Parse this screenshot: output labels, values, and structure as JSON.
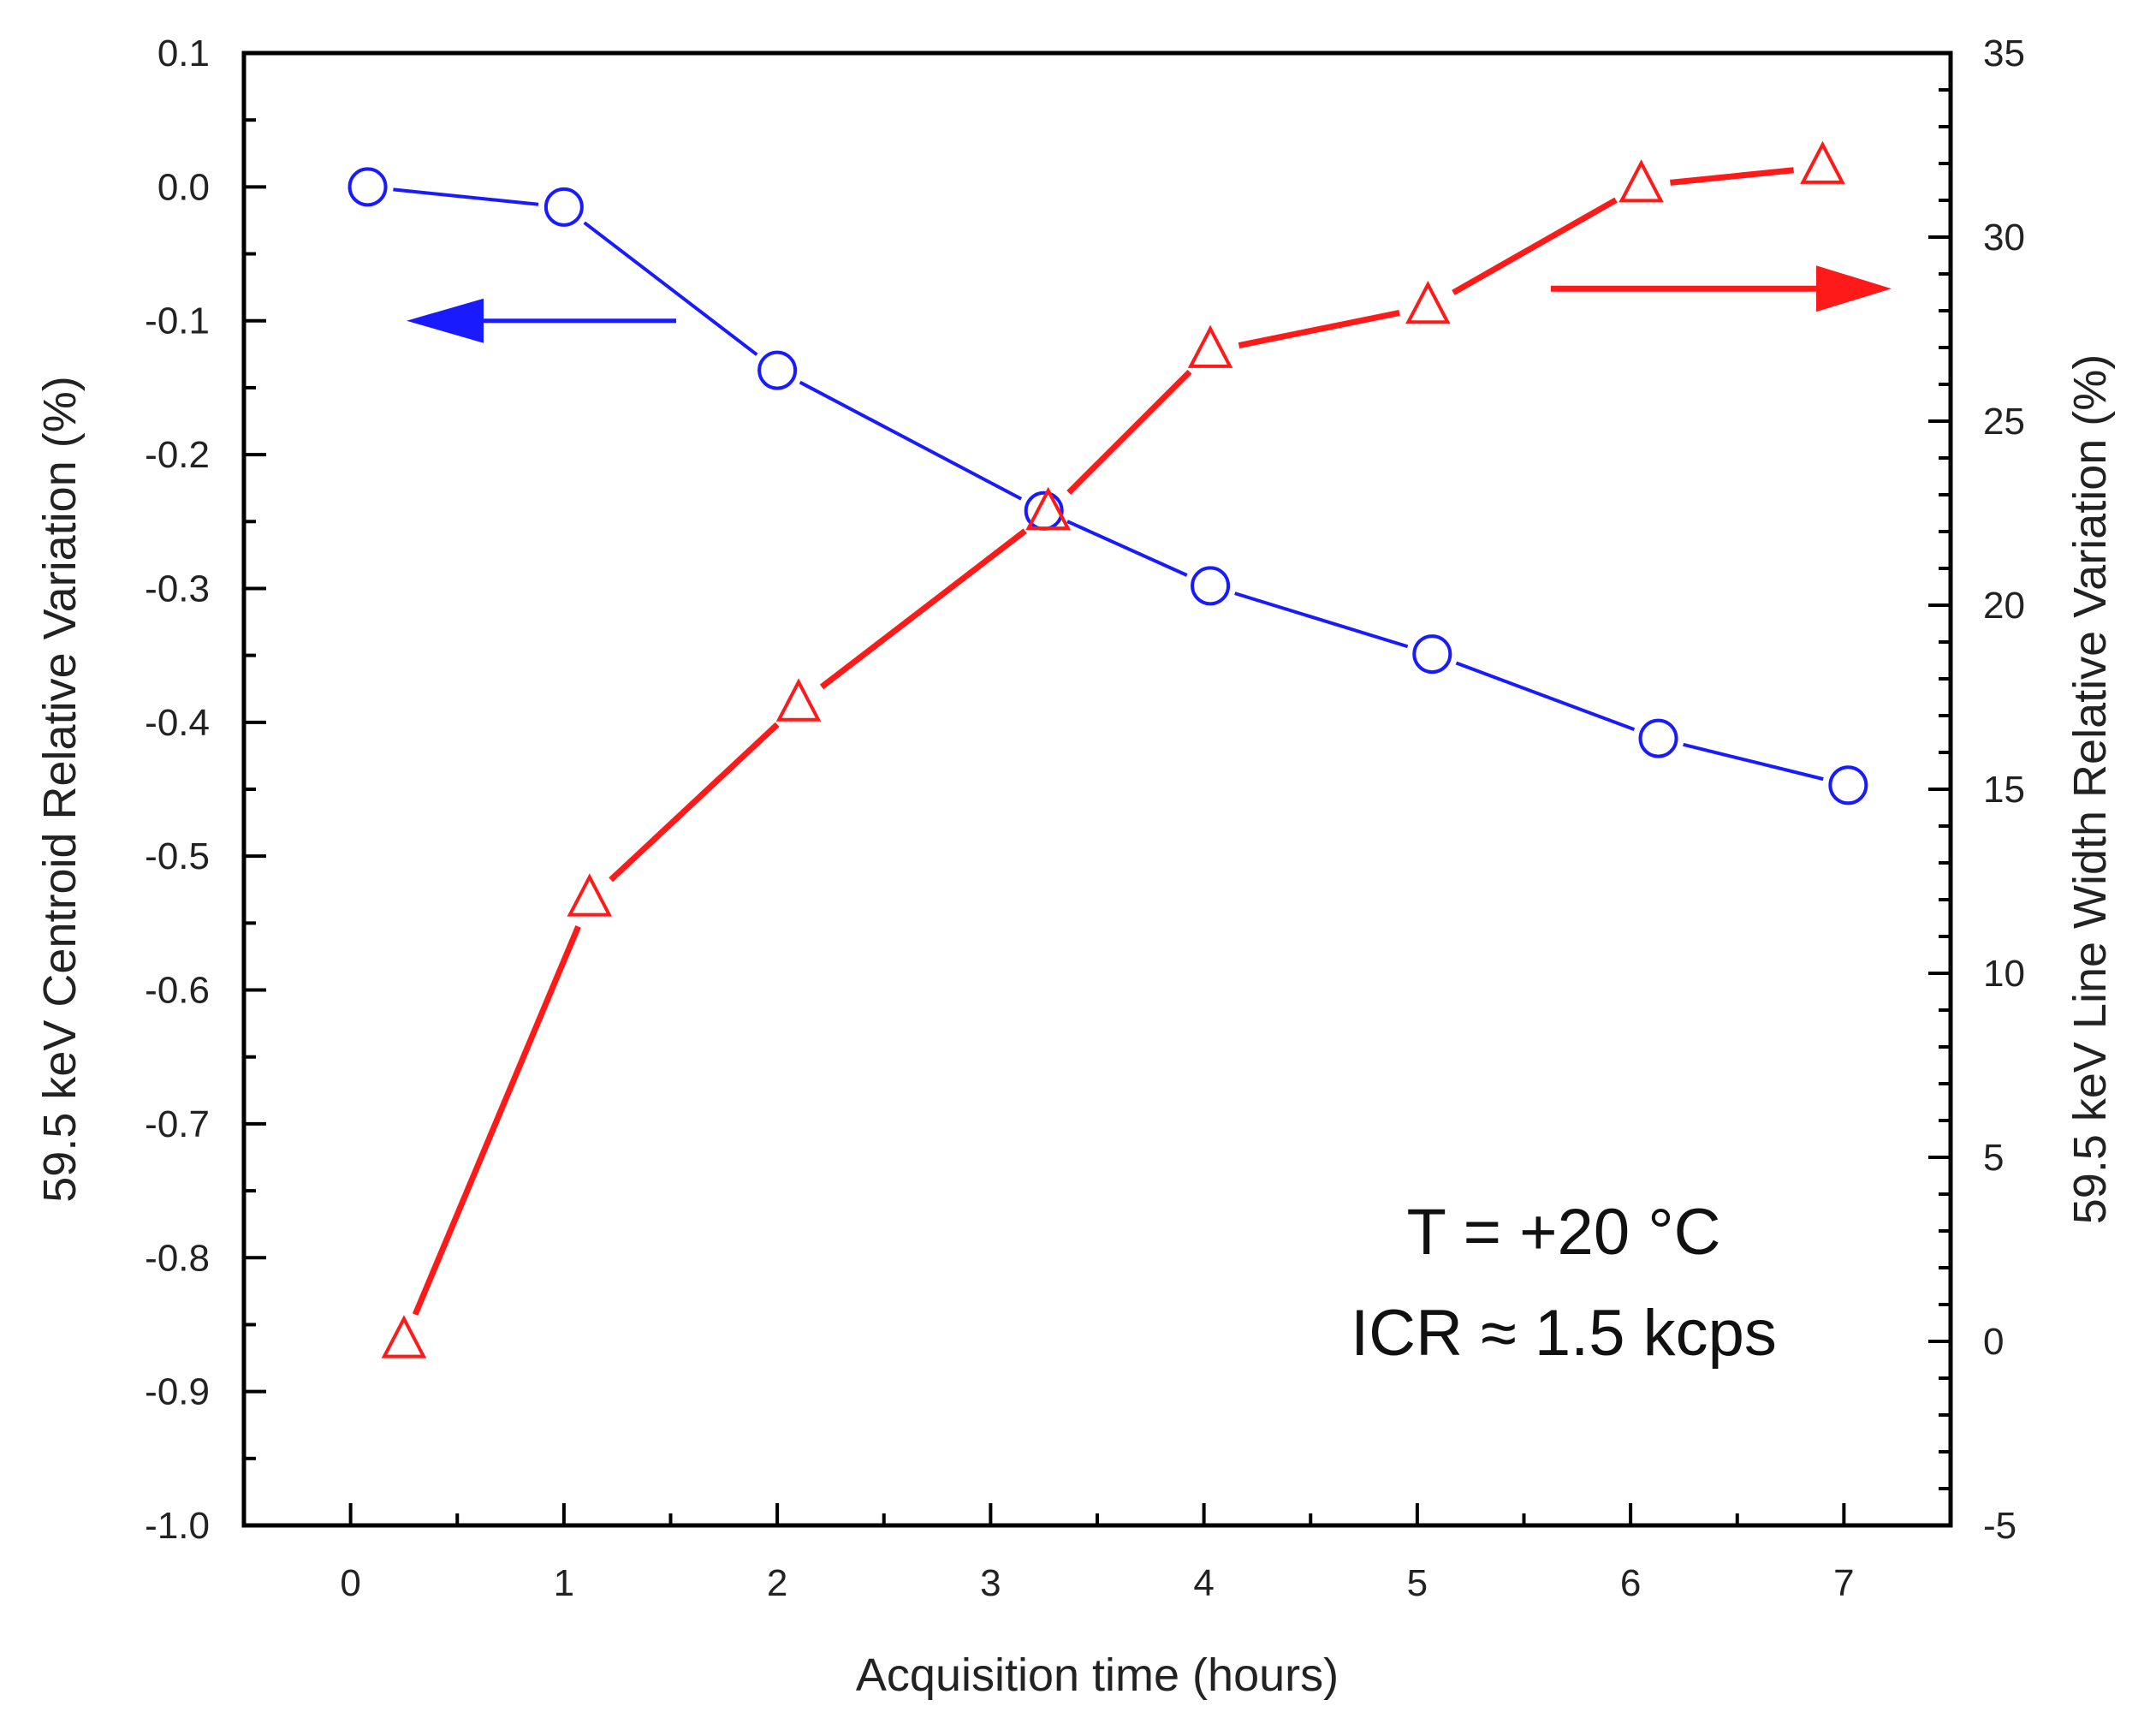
{
  "chart_data": {
    "type": "line",
    "xlabel": "Acquisition time (hours)",
    "ylabel_left": "59.5 keV Centroid Relative Variation (%)",
    "ylabel_right": "59.5 keV Line Width Relative Variation (%)",
    "xlim": [
      -0.5,
      7.5
    ],
    "ylim_left": [
      -1.0,
      0.1
    ],
    "ylim_right": [
      -5,
      35
    ],
    "x_ticks": [
      "0",
      "1",
      "2",
      "3",
      "4",
      "5",
      "6",
      "7"
    ],
    "y_left_ticks": [
      "0.1",
      "0.0",
      "-0.1",
      "-0.2",
      "-0.3",
      "-0.4",
      "-0.5",
      "-0.6",
      "-0.7",
      "-0.8",
      "-0.9",
      "-1.0"
    ],
    "y_right_ticks": [
      "35",
      "30",
      "25",
      "20",
      "15",
      "10",
      "5",
      "0",
      "-5"
    ],
    "series": [
      {
        "name": "Centroid relative variation",
        "axis": "left",
        "marker": "circle",
        "color": "#1a1aff",
        "x": [
          0.08,
          1.0,
          2.0,
          3.25,
          4.03,
          5.07,
          6.13,
          7.02
        ],
        "y": [
          0.0,
          -0.015,
          -0.137,
          -0.242,
          -0.298,
          -0.349,
          -0.412,
          -0.447
        ]
      },
      {
        "name": "Line width relative variation",
        "axis": "right",
        "marker": "triangle",
        "color": "#ff1a1a",
        "x": [
          0.25,
          1.12,
          2.1,
          3.27,
          4.03,
          5.05,
          6.05,
          6.9
        ],
        "y": [
          0.0,
          12.0,
          17.3,
          22.5,
          26.9,
          28.1,
          31.4,
          31.9
        ]
      }
    ],
    "indicator_arrows": [
      {
        "direction": "left",
        "axis": "left",
        "color": "#1a1aff"
      },
      {
        "direction": "right",
        "axis": "right",
        "color": "#ff1a1a"
      }
    ],
    "annotations": [
      "T = +20 °C",
      "ICR ≈ 1.5 kcps"
    ]
  }
}
